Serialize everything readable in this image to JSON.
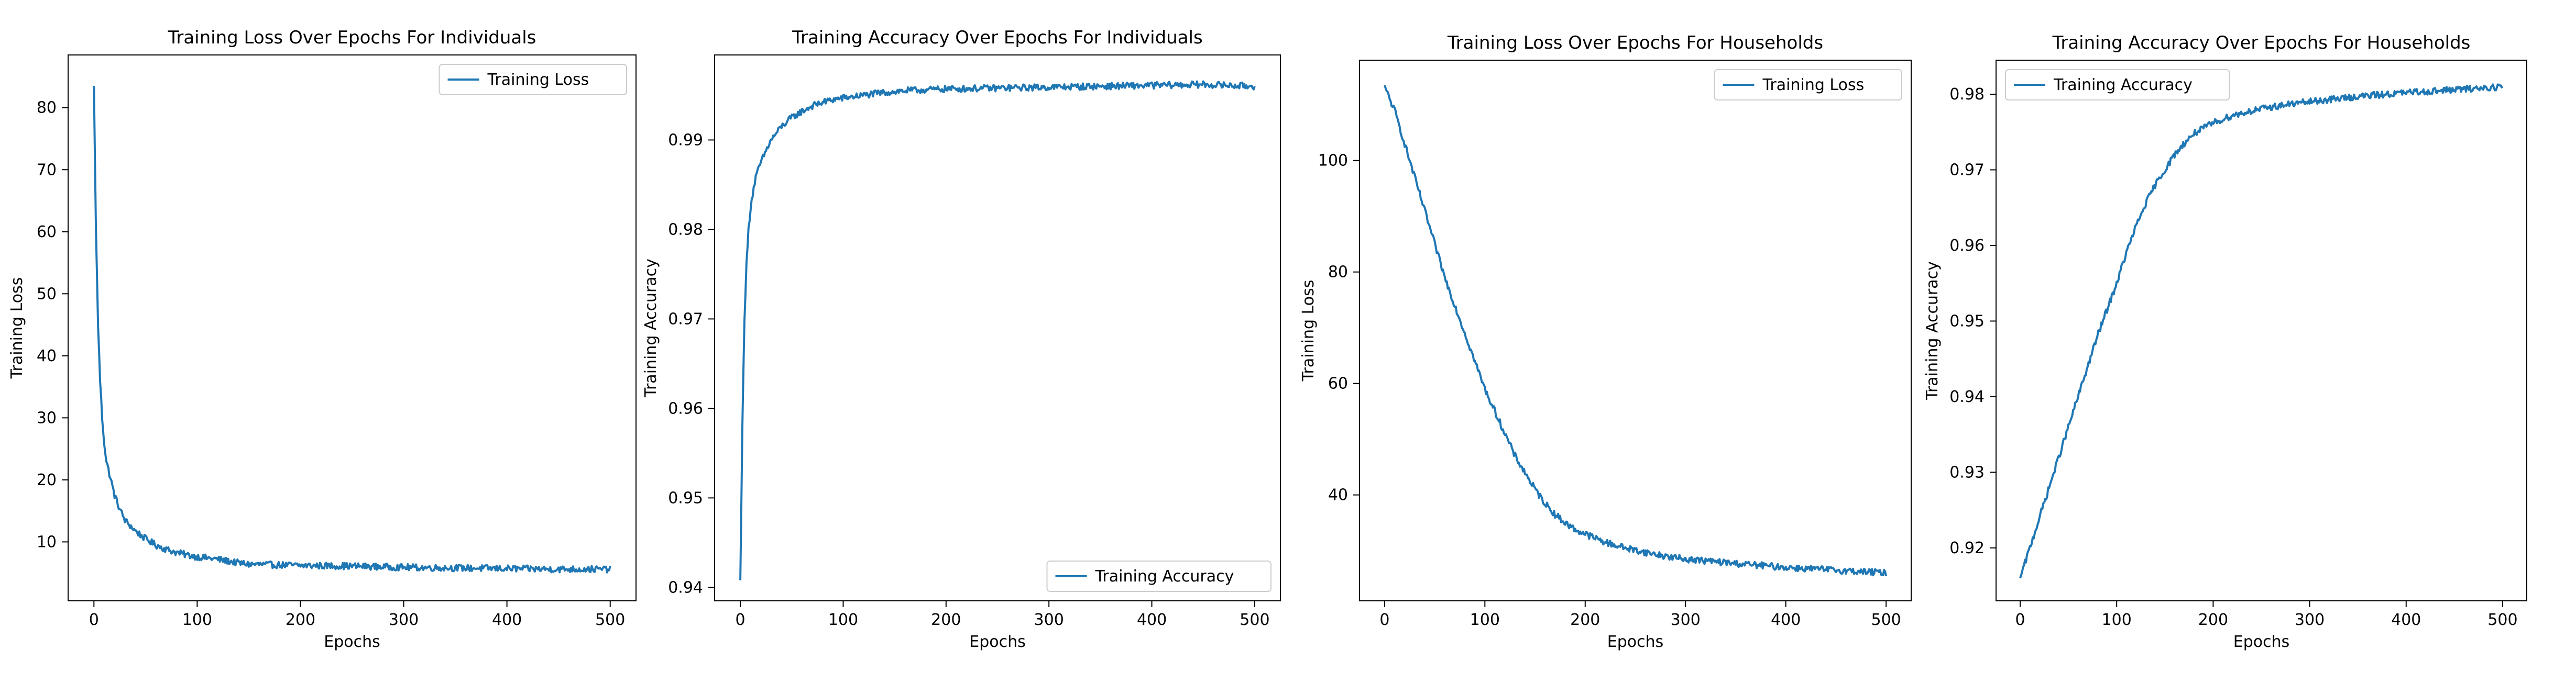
{
  "figure": {
    "line_color": "#1f77b4",
    "background": "#ffffff"
  },
  "chart_data": [
    {
      "type": "line",
      "title": "Training Loss Over Epochs For Individuals",
      "xlabel": "Epochs",
      "ylabel": "Training Loss",
      "xlim": [
        -25,
        525
      ],
      "ylim": [
        0.5,
        88.5
      ],
      "xticks": [
        0,
        100,
        200,
        300,
        400,
        500
      ],
      "yticks": [
        10,
        20,
        30,
        40,
        50,
        60,
        70,
        80
      ],
      "xtick_labels": [
        "0",
        "100",
        "200",
        "300",
        "400",
        "500"
      ],
      "ytick_labels": [
        "10",
        "20",
        "30",
        "40",
        "50",
        "60",
        "70",
        "80"
      ],
      "legend_position": "upper right",
      "grid": false,
      "series": [
        {
          "name": "Training Loss",
          "x": [
            0,
            2,
            4,
            6,
            8,
            10,
            12,
            15,
            20,
            25,
            30,
            40,
            50,
            60,
            70,
            80,
            90,
            100,
            120,
            140,
            150,
            200,
            250,
            300,
            350,
            400,
            450,
            500
          ],
          "y": [
            83.5,
            60,
            45,
            36,
            30,
            26,
            23,
            21,
            17.5,
            15.3,
            13.5,
            11.8,
            10.5,
            9.5,
            8.8,
            8.3,
            7.9,
            7.6,
            7.2,
            6.6,
            6.4,
            6.2,
            6.1,
            5.9,
            5.8,
            5.7,
            5.6,
            5.6
          ]
        }
      ]
    },
    {
      "type": "line",
      "title": "Training Accuracy Over Epochs For Individuals",
      "xlabel": "Epochs",
      "ylabel": "Training Accuracy",
      "xlim": [
        -25,
        525
      ],
      "ylim": [
        0.9385,
        0.9995
      ],
      "xticks": [
        0,
        100,
        200,
        300,
        400,
        500
      ],
      "yticks": [
        0.94,
        0.95,
        0.96,
        0.97,
        0.98,
        0.99
      ],
      "xtick_labels": [
        "0",
        "100",
        "200",
        "300",
        "400",
        "500"
      ],
      "ytick_labels": [
        "0.94",
        "0.95",
        "0.96",
        "0.97",
        "0.98",
        "0.99"
      ],
      "legend_position": "lower right",
      "grid": false,
      "series": [
        {
          "name": "Training Accuracy",
          "x": [
            0,
            2,
            4,
            6,
            8,
            10,
            12,
            15,
            20,
            25,
            30,
            40,
            50,
            60,
            70,
            80,
            90,
            100,
            120,
            140,
            160,
            180,
            200,
            250,
            300,
            350,
            400,
            450,
            500
          ],
          "y": [
            0.9408,
            0.958,
            0.97,
            0.976,
            0.98,
            0.9825,
            0.984,
            0.9858,
            0.9875,
            0.9888,
            0.99,
            0.9915,
            0.9925,
            0.9932,
            0.9938,
            0.9942,
            0.9945,
            0.9947,
            0.995,
            0.9953,
            0.9955,
            0.9956,
            0.9957,
            0.9958,
            0.9959,
            0.996,
            0.9961,
            0.9962,
            0.996
          ]
        }
      ]
    },
    {
      "type": "line",
      "title": "Training Loss Over Epochs For Households",
      "xlabel": "Epochs",
      "ylabel": "Training Loss",
      "xlim": [
        -25,
        525
      ],
      "ylim": [
        21,
        118
      ],
      "xticks": [
        0,
        100,
        200,
        300,
        400,
        500
      ],
      "yticks": [
        40,
        60,
        80,
        100
      ],
      "xtick_labels": [
        "0",
        "100",
        "200",
        "300",
        "400",
        "500"
      ],
      "ytick_labels": [
        "40",
        "60",
        "80",
        "100"
      ],
      "legend_position": "upper right",
      "grid": false,
      "series": [
        {
          "name": "Training Loss",
          "x": [
            0,
            5,
            10,
            20,
            30,
            40,
            50,
            60,
            70,
            80,
            90,
            100,
            110,
            120,
            130,
            140,
            150,
            160,
            170,
            180,
            190,
            200,
            220,
            240,
            260,
            280,
            300,
            350,
            400,
            450,
            500
          ],
          "y": [
            113.5,
            111,
            109,
            103,
            97,
            91,
            85,
            79,
            74,
            69,
            64,
            59,
            55,
            51,
            47,
            44,
            41,
            38.5,
            36.5,
            35,
            33.8,
            33,
            31.5,
            30.5,
            29.7,
            29,
            28.5,
            27.7,
            27,
            26.5,
            26
          ]
        }
      ]
    },
    {
      "type": "line",
      "title": "Training Accuracy Over Epochs For Households",
      "xlabel": "Epochs",
      "ylabel": "Training Accuracy",
      "xlim": [
        -25,
        525
      ],
      "ylim": [
        0.913,
        0.9845
      ],
      "xticks": [
        0,
        100,
        200,
        300,
        400,
        500
      ],
      "yticks": [
        0.92,
        0.93,
        0.94,
        0.95,
        0.96,
        0.97,
        0.98
      ],
      "xtick_labels": [
        "0",
        "100",
        "200",
        "300",
        "400",
        "500"
      ],
      "ytick_labels": [
        "0.92",
        "0.93",
        "0.94",
        "0.95",
        "0.96",
        "0.97",
        "0.98"
      ],
      "legend_position": "upper left",
      "grid": false,
      "series": [
        {
          "name": "Training Accuracy",
          "x": [
            0,
            5,
            10,
            20,
            30,
            40,
            50,
            60,
            70,
            80,
            90,
            100,
            110,
            120,
            130,
            140,
            150,
            160,
            170,
            180,
            190,
            200,
            220,
            240,
            260,
            280,
            300,
            350,
            400,
            450,
            500
          ],
          "y": [
            0.916,
            0.918,
            0.92,
            0.924,
            0.928,
            0.932,
            0.936,
            0.94,
            0.944,
            0.948,
            0.9515,
            0.955,
            0.959,
            0.9625,
            0.9655,
            0.968,
            0.97,
            0.972,
            0.9735,
            0.9748,
            0.9755,
            0.9762,
            0.9772,
            0.9778,
            0.9783,
            0.9787,
            0.979,
            0.9797,
            0.9802,
            0.9806,
            0.981
          ]
        }
      ]
    }
  ]
}
